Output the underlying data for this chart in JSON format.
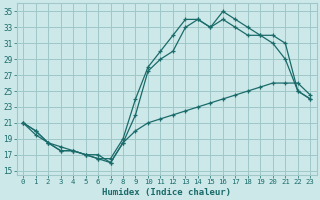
{
  "xlabel": "Humidex (Indice chaleur)",
  "xlim": [
    -0.5,
    23.5
  ],
  "ylim": [
    14.5,
    36
  ],
  "xticks": [
    0,
    1,
    2,
    3,
    4,
    5,
    6,
    7,
    8,
    9,
    10,
    11,
    12,
    13,
    14,
    15,
    16,
    17,
    18,
    19,
    20,
    21,
    22,
    23
  ],
  "yticks": [
    15,
    17,
    19,
    21,
    23,
    25,
    27,
    29,
    31,
    33,
    35
  ],
  "bg_color": "#cde8e8",
  "grid_color": "#a0c8c8",
  "line_color": "#1a6b6b",
  "line1_x": [
    0,
    1,
    2,
    3,
    4,
    5,
    6,
    7,
    8,
    9,
    10,
    11,
    12,
    13,
    14,
    15,
    16,
    17,
    18,
    19,
    20,
    21,
    22,
    23
  ],
  "line1_y": [
    21,
    20,
    18.5,
    17.5,
    17.5,
    17,
    16.5,
    16.5,
    19,
    24,
    28,
    30,
    32,
    34,
    34,
    33,
    35,
    34,
    33,
    32,
    31,
    29,
    25,
    24
  ],
  "line2_x": [
    0,
    1,
    2,
    3,
    4,
    5,
    6,
    7,
    8,
    9,
    10,
    11,
    12,
    13,
    14,
    15,
    16,
    17,
    18,
    19,
    20,
    21,
    22,
    23
  ],
  "line2_y": [
    21,
    20,
    18.5,
    17.5,
    17.5,
    17,
    16.5,
    16,
    18.5,
    22,
    27.5,
    29,
    30,
    33,
    34,
    33,
    34,
    33,
    32,
    32,
    32,
    31,
    25,
    24
  ],
  "line3_x": [
    0,
    1,
    2,
    3,
    4,
    5,
    6,
    7,
    8,
    9,
    10,
    11,
    12,
    13,
    14,
    15,
    16,
    17,
    18,
    19,
    20,
    21,
    22,
    23
  ],
  "line3_y": [
    21,
    19.5,
    18.5,
    18,
    17.5,
    17,
    17,
    16,
    18.5,
    20,
    21,
    21.5,
    22,
    22.5,
    23,
    23.5,
    24,
    24.5,
    25,
    25.5,
    26,
    26,
    26,
    24.5
  ]
}
